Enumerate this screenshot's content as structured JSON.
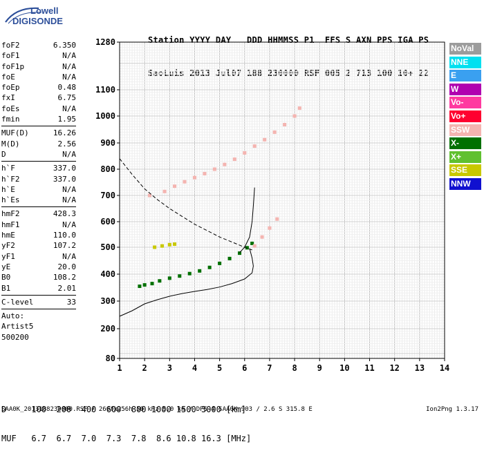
{
  "logo": {
    "line1": "Lowell",
    "line2": "DIGISONDE"
  },
  "header": {
    "line1": "Station YYYY DAY   DDD HHMMSS P1  FFS S AXN PPS IGA PS",
    "line2": "SaoLuis 2013 Jul07 188 230000 RSF 005 2 713 100 10+ 22"
  },
  "params": [
    [
      {
        "k": "foF2",
        "v": "6.350"
      },
      {
        "k": "foF1",
        "v": "N/A"
      },
      {
        "k": "foF1p",
        "v": "N/A"
      },
      {
        "k": "foE",
        "v": "N/A"
      },
      {
        "k": "foEp",
        "v": "0.48"
      },
      {
        "k": "fxI",
        "v": "6.75"
      },
      {
        "k": "foEs",
        "v": "N/A"
      },
      {
        "k": "fmin",
        "v": "1.95"
      }
    ],
    [
      {
        "k": "MUF(D)",
        "v": "16.26"
      },
      {
        "k": "M(D)",
        "v": "2.56"
      },
      {
        "k": "D",
        "v": "N/A"
      }
    ],
    [
      {
        "k": "h`F",
        "v": "337.0"
      },
      {
        "k": "h`F2",
        "v": "337.0"
      },
      {
        "k": "h`E",
        "v": "N/A"
      },
      {
        "k": "h`Es",
        "v": "N/A"
      }
    ],
    [
      {
        "k": "hmF2",
        "v": "428.3"
      },
      {
        "k": "hmF1",
        "v": "N/A"
      },
      {
        "k": "hmE",
        "v": "110.0"
      },
      {
        "k": "yF2",
        "v": "107.2"
      },
      {
        "k": "yF1",
        "v": "N/A"
      },
      {
        "k": "yE",
        "v": "20.0"
      },
      {
        "k": "B0",
        "v": "108.2"
      },
      {
        "k": "B1",
        "v": "2.01"
      }
    ],
    [
      {
        "k": "C-level",
        "v": "33"
      }
    ]
  ],
  "auto": [
    "Auto:",
    "Artist5",
    "500200"
  ],
  "legend": [
    {
      "label": "NoVal",
      "color": "#9c9c9c"
    },
    {
      "label": "NNE",
      "color": "#00e0f0"
    },
    {
      "label": "E",
      "color": "#3aa0f0"
    },
    {
      "label": "W",
      "color": "#b000b0"
    },
    {
      "label": "Vo-",
      "color": "#ff3aa0"
    },
    {
      "label": "Vo+",
      "color": "#ff0030"
    },
    {
      "label": "SSW",
      "color": "#f4b4b0"
    },
    {
      "label": "X-",
      "color": "#007000"
    },
    {
      "label": "X+",
      "color": "#60c030"
    },
    {
      "label": "SSE",
      "color": "#c8c800"
    },
    {
      "label": "NNW",
      "color": "#1010d0"
    }
  ],
  "chart_data": {
    "type": "scatter",
    "title": "",
    "xlabel": "",
    "ylabel": "",
    "xlim": [
      1,
      14
    ],
    "ylim": [
      80,
      1280
    ],
    "xticks": [
      1,
      2,
      3,
      4,
      5,
      6,
      7,
      8,
      9,
      10,
      11,
      12,
      13,
      14
    ],
    "yticks": [
      80,
      200,
      300,
      400,
      500,
      600,
      700,
      800,
      900,
      1000,
      1100,
      1280
    ],
    "grid": true,
    "legend_position": "right",
    "series": [
      {
        "color": "#007000",
        "points": [
          [
            1.8,
            355
          ],
          [
            2.0,
            360
          ],
          [
            2.3,
            365
          ],
          [
            2.6,
            375
          ],
          [
            3.0,
            385
          ],
          [
            3.4,
            393
          ],
          [
            3.8,
            402
          ],
          [
            4.2,
            412
          ],
          [
            4.6,
            425
          ],
          [
            5.0,
            440
          ],
          [
            5.4,
            458
          ],
          [
            5.8,
            478
          ],
          [
            6.1,
            498
          ],
          [
            6.3,
            515
          ]
        ]
      },
      {
        "color": "#f4b4b0",
        "points": [
          [
            2.2,
            700
          ],
          [
            2.8,
            715
          ],
          [
            3.2,
            735
          ],
          [
            3.6,
            752
          ],
          [
            4.0,
            768
          ],
          [
            4.4,
            783
          ],
          [
            4.8,
            800
          ],
          [
            5.2,
            818
          ],
          [
            5.6,
            838
          ],
          [
            6.0,
            862
          ],
          [
            6.4,
            888
          ],
          [
            6.8,
            912
          ],
          [
            7.2,
            940
          ],
          [
            7.6,
            968
          ],
          [
            8.0,
            1000
          ],
          [
            8.2,
            1030
          ],
          [
            6.4,
            505
          ],
          [
            6.7,
            540
          ],
          [
            7.0,
            575
          ],
          [
            7.3,
            610
          ]
        ]
      },
      {
        "color": "#c8c800",
        "points": [
          [
            2.4,
            500
          ],
          [
            2.7,
            505
          ],
          [
            3.0,
            510
          ],
          [
            3.2,
            512
          ]
        ]
      }
    ],
    "profile_curve": [
      [
        1,
        245
      ],
      [
        1.5,
        265
      ],
      [
        2,
        290
      ],
      [
        2.5,
        305
      ],
      [
        3,
        318
      ],
      [
        3.5,
        328
      ],
      [
        4,
        336
      ],
      [
        4.5,
        343
      ],
      [
        5,
        352
      ],
      [
        5.5,
        365
      ],
      [
        6,
        382
      ],
      [
        6.3,
        405
      ],
      [
        6.35,
        430
      ],
      [
        6.3,
        460
      ],
      [
        6.2,
        495
      ]
    ],
    "dashed_curve": [
      [
        1,
        840
      ],
      [
        1.5,
        780
      ],
      [
        2,
        725
      ],
      [
        2.5,
        685
      ],
      [
        3,
        650
      ],
      [
        3.5,
        620
      ],
      [
        4,
        590
      ],
      [
        4.5,
        565
      ],
      [
        5,
        540
      ],
      [
        5.5,
        520
      ],
      [
        6,
        500
      ],
      [
        6.3,
        490
      ]
    ],
    "trace_curve": [
      [
        5.8,
        480
      ],
      [
        6.0,
        500
      ],
      [
        6.2,
        540
      ],
      [
        6.3,
        600
      ],
      [
        6.35,
        660
      ],
      [
        6.4,
        730
      ]
    ]
  },
  "dm_table": {
    "d_row": "D     100  200  400  600  800 1000 1500 3000 [km]",
    "muf_row": "MUF   6.7  6.7  7.0  7.3  7.8  8.6 10.8 16.3 [MHz]"
  },
  "footer": {
    "text": "SAA0K_2013188230000.RSF / 260fx256h 50 kHz 5.0 km / DPS-4 SAA0K 903 / 2.6 S 315.8 E",
    "version": "Ion2Png 1.3.17"
  }
}
